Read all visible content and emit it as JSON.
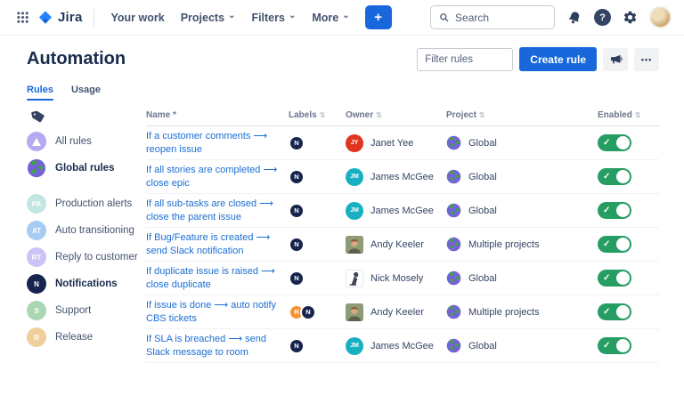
{
  "nav": {
    "brand": "Jira",
    "items": [
      {
        "label": "Your work",
        "chevron": false
      },
      {
        "label": "Projects",
        "chevron": true
      },
      {
        "label": "Filters",
        "chevron": true
      },
      {
        "label": "More",
        "chevron": true
      }
    ],
    "create_label": "+",
    "search_placeholder": "Search"
  },
  "header": {
    "title": "Automation",
    "filter_placeholder": "Filter rules",
    "create_rule_label": "Create rule"
  },
  "tabs": [
    {
      "label": "Rules",
      "active": true
    },
    {
      "label": "Usage",
      "active": false
    }
  ],
  "icons": {
    "chevron_down": "⌄",
    "ellipsis": "•••",
    "question_mark": "?",
    "sort": "⇅",
    "check": "✓"
  },
  "colors": {
    "accent_blue": "#1868db",
    "link_blue": "#1c6ed2",
    "toggle_green": "#259d63",
    "badge_navy": "#17254e",
    "badge_orange": "#f79232"
  },
  "sidebar": {
    "items": [
      {
        "label": "All rules",
        "type": "mark",
        "bg": "#b7a9f1",
        "bold": false,
        "group_gap": false
      },
      {
        "label": "Global rules",
        "type": "globe",
        "bg": "",
        "bold": true,
        "group_gap": false
      },
      {
        "label": "Production alerts",
        "type": "initials",
        "initials": "PA",
        "bg": "#c3e6e2",
        "bold": false,
        "group_gap": true
      },
      {
        "label": "Auto transitioning",
        "type": "initials",
        "initials": "AT",
        "bg": "#a8cbf3",
        "bold": false,
        "group_gap": false
      },
      {
        "label": "Reply to customer",
        "type": "initials",
        "initials": "RT",
        "bg": "#c9c4f5",
        "bold": false,
        "group_gap": false
      },
      {
        "label": "Notifications",
        "type": "initials",
        "initials": "N",
        "bg": "#17254e",
        "bold": true,
        "group_gap": false
      },
      {
        "label": "Support",
        "type": "initials",
        "initials": "S",
        "bg": "#a9d7b2",
        "bold": false,
        "group_gap": false
      },
      {
        "label": "Release",
        "type": "initials",
        "initials": "R",
        "bg": "#f1cf9d",
        "bold": false,
        "group_gap": false
      }
    ]
  },
  "table": {
    "columns": [
      {
        "label": "Name *",
        "sort": false
      },
      {
        "label": "Labels",
        "sort": true
      },
      {
        "label": "Owner",
        "sort": true
      },
      {
        "label": "Project",
        "sort": true
      },
      {
        "label": "Enabled",
        "sort": true
      }
    ],
    "rows": [
      {
        "name": "If a customer comments ⟶ reopen issue",
        "labels": [
          {
            "text": "N",
            "bg": "#17254e"
          }
        ],
        "owner": {
          "name": "Janet Yee",
          "type": "initials",
          "initials": "JY",
          "bg": "#e0351f"
        },
        "project": "Global",
        "enabled": true
      },
      {
        "name": "If all stories are completed ⟶ close epic",
        "labels": [
          {
            "text": "N",
            "bg": "#17254e"
          }
        ],
        "owner": {
          "name": "James McGee",
          "type": "initials",
          "initials": "JM",
          "bg": "#17b0c0"
        },
        "project": "Global",
        "enabled": true
      },
      {
        "name": "If all sub-tasks are closed ⟶ close the parent issue",
        "labels": [
          {
            "text": "N",
            "bg": "#17254e"
          }
        ],
        "owner": {
          "name": "James McGee",
          "type": "initials",
          "initials": "JM",
          "bg": "#17b0c0"
        },
        "project": "Global",
        "enabled": true
      },
      {
        "name": "If Bug/Feature is created ⟶ send Slack notification",
        "labels": [
          {
            "text": "N",
            "bg": "#17254e"
          }
        ],
        "owner": {
          "name": "Andy Keeler",
          "type": "photo-a"
        },
        "project": "Multiple projects",
        "enabled": true
      },
      {
        "name": "If duplicate issue is raised ⟶ close duplicate",
        "labels": [
          {
            "text": "N",
            "bg": "#17254e"
          }
        ],
        "owner": {
          "name": "Nick Mosely",
          "type": "photo-n"
        },
        "project": "Global",
        "enabled": true
      },
      {
        "name": "If issue is done ⟶ auto notify CBS tickets",
        "labels": [
          {
            "text": "R",
            "bg": "#f79232"
          },
          {
            "text": "N",
            "bg": "#17254e"
          }
        ],
        "owner": {
          "name": "Andy Keeler",
          "type": "photo-a"
        },
        "project": "Multiple projects",
        "enabled": true
      },
      {
        "name": "If SLA is breached ⟶ send Slack message to room",
        "labels": [
          {
            "text": "N",
            "bg": "#17254e"
          }
        ],
        "owner": {
          "name": "James McGee",
          "type": "initials",
          "initials": "JM",
          "bg": "#17b0c0"
        },
        "project": "Global",
        "enabled": true
      }
    ]
  }
}
